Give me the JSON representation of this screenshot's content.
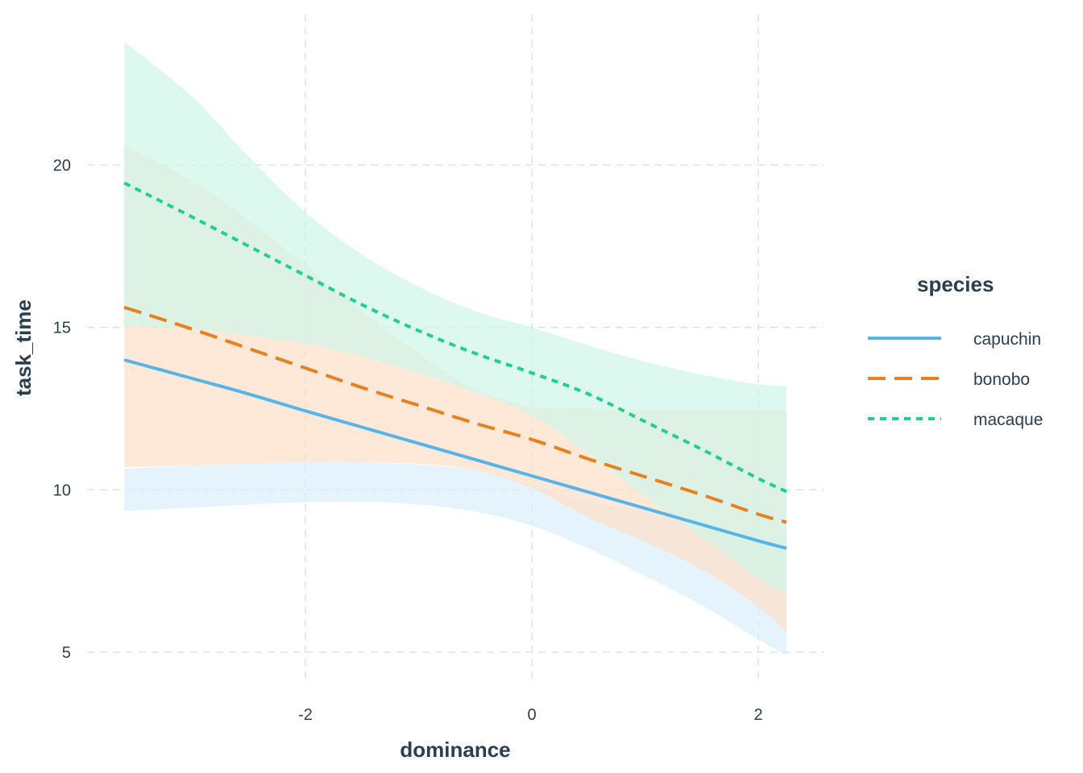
{
  "chart_data": {
    "type": "line",
    "xlabel": "dominance",
    "ylabel": "task_time",
    "xlim": [
      -3.3,
      2.55
    ],
    "ylim": [
      4.15,
      23.9
    ],
    "x_ticks": [
      -2,
      0,
      2
    ],
    "y_ticks": [
      5,
      10,
      15,
      20
    ],
    "grid": true,
    "legend": {
      "title": "species",
      "placement": "right"
    },
    "x": [
      -3.6,
      -3.0,
      -2.5,
      -2.0,
      -1.5,
      -1.0,
      -0.5,
      0.0,
      0.5,
      1.0,
      1.5,
      2.0,
      2.25
    ],
    "series": [
      {
        "name": "capuchin",
        "color": "#56b4e9",
        "band_color": "#d9eefb",
        "linetype": "solid",
        "fit": [
          14.0,
          13.43,
          12.95,
          12.43,
          11.93,
          11.43,
          10.93,
          10.43,
          9.93,
          9.43,
          8.93,
          8.43,
          8.2
        ],
        "lower": [
          9.35,
          9.45,
          9.55,
          9.62,
          9.63,
          9.55,
          9.33,
          8.9,
          8.2,
          7.35,
          6.45,
          5.4,
          4.9
        ],
        "upper": [
          10.65,
          10.75,
          10.8,
          10.85,
          10.85,
          10.78,
          10.6,
          10.15,
          9.65,
          9.35,
          9.05,
          8.65,
          8.45
        ]
      },
      {
        "name": "bonobo",
        "color": "#e8801f",
        "band_color": "#fde1cb",
        "linetype": "dashed",
        "fit": [
          15.62,
          14.95,
          14.35,
          13.75,
          13.15,
          12.6,
          12.05,
          11.55,
          10.95,
          10.4,
          9.85,
          9.25,
          9.0
        ],
        "lower": [
          10.7,
          10.75,
          10.8,
          10.85,
          10.85,
          10.8,
          10.6,
          10.05,
          9.15,
          8.4,
          7.55,
          6.4,
          5.6
        ],
        "upper": [
          20.6,
          19.5,
          18.3,
          16.9,
          15.5,
          14.2,
          13.1,
          12.55,
          12.5,
          12.45,
          12.45,
          12.45,
          12.45
        ]
      },
      {
        "name": "macaque",
        "color": "#1fd090",
        "band_color": "#d0f5e8",
        "linetype": "dotted",
        "fit": [
          19.45,
          18.4,
          17.5,
          16.6,
          15.7,
          14.9,
          14.2,
          13.6,
          12.95,
          12.1,
          11.25,
          10.35,
          9.95
        ],
        "lower": [
          15.05,
          14.95,
          14.75,
          14.5,
          14.1,
          13.6,
          13.0,
          12.3,
          11.1,
          9.8,
          8.55,
          7.3,
          6.75
        ],
        "upper": [
          23.8,
          22.1,
          20.25,
          18.55,
          17.25,
          16.25,
          15.5,
          15.0,
          14.45,
          13.95,
          13.55,
          13.25,
          13.2
        ]
      }
    ]
  }
}
